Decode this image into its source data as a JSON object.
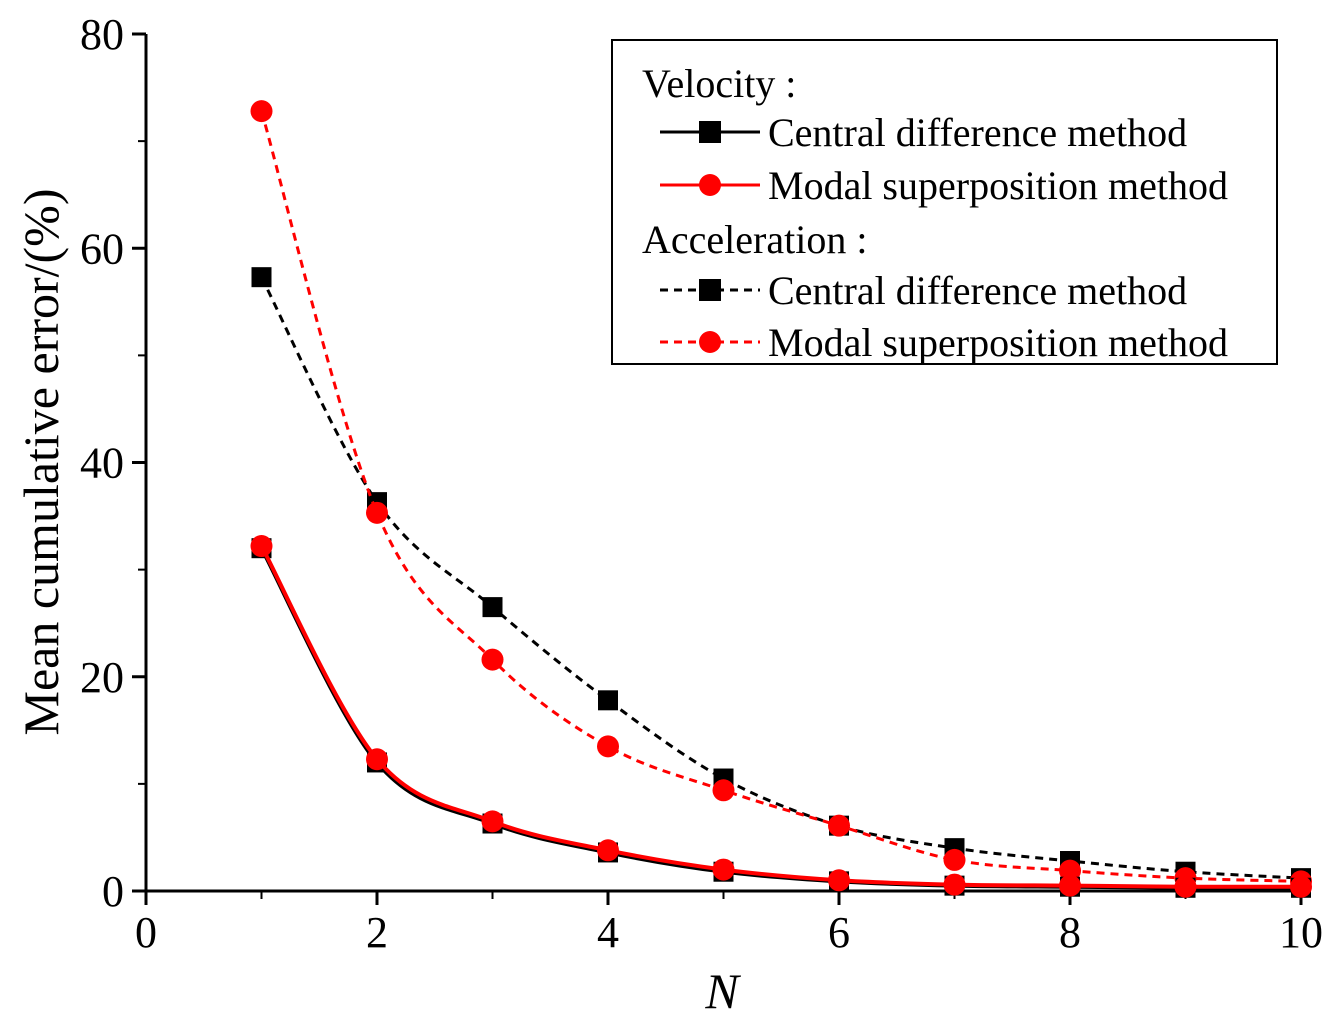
{
  "chart_data": {
    "type": "line",
    "xlabel": "N",
    "ylabel": "Mean cumulative error/(%)",
    "xlim": [
      0,
      10
    ],
    "ylim": [
      0,
      80
    ],
    "xticks": [
      "0",
      "2",
      "4",
      "6",
      "8",
      "10"
    ],
    "yticks": [
      "0",
      "20",
      "40",
      "60",
      "80"
    ],
    "x": [
      1,
      2,
      3,
      4,
      5,
      6,
      7,
      8,
      9,
      10
    ],
    "legend": {
      "placement": "top-right",
      "group1_title": "Velocity :",
      "group2_title": "Acceleration :",
      "entry1": "Central difference method",
      "entry2": "Modal superposition method",
      "entry3": "Central difference method",
      "entry4": "Modal superposition method"
    },
    "series": [
      {
        "name": "Velocity - Central difference method",
        "color": "#000000",
        "marker": "square",
        "dashed": false,
        "values": [
          32.0,
          12.0,
          6.3,
          3.6,
          1.8,
          0.9,
          0.5,
          0.4,
          0.3,
          0.3
        ]
      },
      {
        "name": "Velocity - Modal superposition method",
        "color": "#ff0000",
        "marker": "circle",
        "dashed": false,
        "values": [
          32.2,
          12.3,
          6.5,
          3.8,
          2.0,
          1.0,
          0.6,
          0.5,
          0.4,
          0.4
        ]
      },
      {
        "name": "Acceleration - Central difference method",
        "color": "#000000",
        "marker": "square",
        "dashed": true,
        "values": [
          57.3,
          36.3,
          26.5,
          17.8,
          10.5,
          6.1,
          4.0,
          2.8,
          1.8,
          1.2
        ]
      },
      {
        "name": "Acceleration - Modal superposition method",
        "color": "#ff0000",
        "marker": "circle",
        "dashed": true,
        "values": [
          72.8,
          35.3,
          21.6,
          13.5,
          9.4,
          6.1,
          2.9,
          1.9,
          1.2,
          0.9
        ]
      }
    ]
  }
}
